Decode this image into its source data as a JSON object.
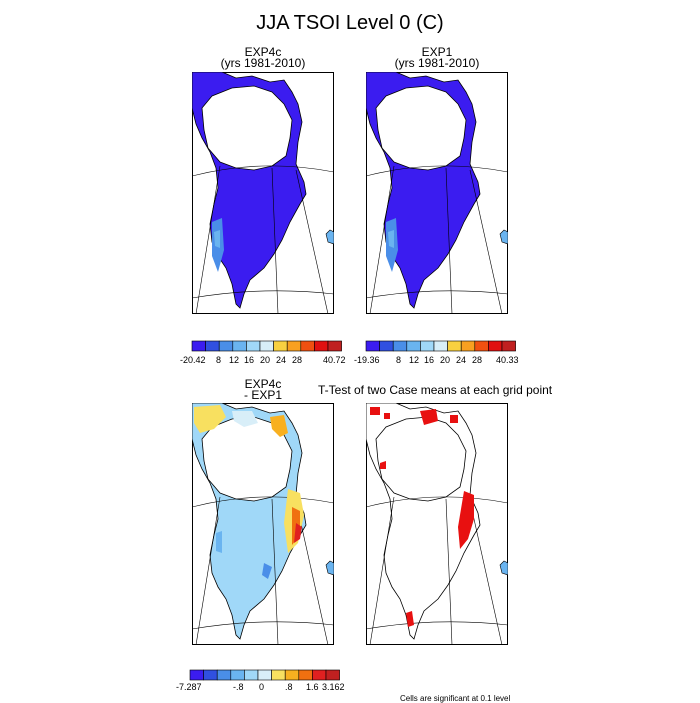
{
  "page": {
    "title": "JJA TSOI Level 0 (C)"
  },
  "panels": {
    "exp4c": {
      "line1": "EXP4c",
      "line2": "(yrs 1981-2010)"
    },
    "exp1": {
      "line1": "EXP1",
      "line2": "(yrs 1981-2010)"
    },
    "diff": {
      "line1": "EXP4c",
      "line2": "- EXP1"
    },
    "ttest": {
      "title": "T-Test of two Case means at each grid point"
    }
  },
  "colorbars": {
    "exp4c": {
      "min": "-20.42",
      "max": "40.72",
      "ticks": [
        "8",
        "12",
        "16",
        "20",
        "24",
        "28"
      ]
    },
    "exp1": {
      "min": "-19.36",
      "max": "40.33",
      "ticks": [
        "8",
        "12",
        "16",
        "20",
        "24",
        "28"
      ]
    },
    "diff": {
      "min": "-7.287",
      "max": "3.162",
      "ticks": [
        "-.8",
        "0",
        ".8",
        "1.6"
      ]
    }
  },
  "palettes": {
    "absolute": [
      "#3b1cf0",
      "#3050e0",
      "#4a8ee8",
      "#6ab4f0",
      "#a0d8f8",
      "#d8eef8",
      "#f8d040",
      "#f8a020",
      "#f05010",
      "#e01010",
      "#c02020"
    ],
    "difference": [
      "#3b1cf0",
      "#3050e0",
      "#4a8ee8",
      "#6ab4f0",
      "#a0d8f8",
      "#d8eef8",
      "#f8e060",
      "#f8b020",
      "#f07010",
      "#e02020",
      "#c02020"
    ],
    "significance": "#e81010",
    "land_cold": "#3b1cf0"
  },
  "footnote": "Cells are significant at 0.1 level"
}
